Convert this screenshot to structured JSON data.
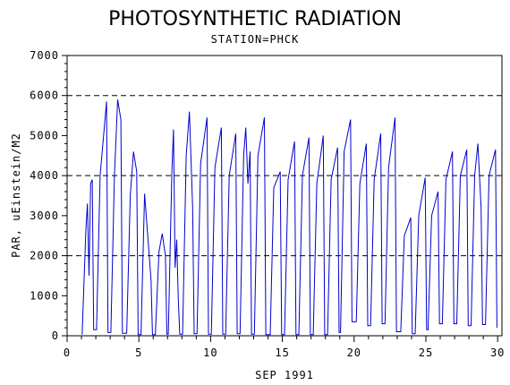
{
  "chart_data": {
    "type": "line",
    "title": "PHOTOSYNTHETIC RADIATION",
    "subtitle": "STATION=PHCK",
    "xlabel": "SEP 1991",
    "ylabel": "PAR, uEinstein/M2",
    "xlim": [
      0,
      30.3
    ],
    "ylim": [
      0,
      7000
    ],
    "xticks": [
      0,
      5,
      10,
      15,
      20,
      25,
      30
    ],
    "yticks": [
      0,
      1000,
      2000,
      3000,
      4000,
      5000,
      6000,
      7000
    ],
    "reference_lines_y": [
      2000,
      4000,
      6000
    ],
    "line_color": "#0000cc",
    "series": [
      {
        "peaks": [
          {
            "start": 1.2,
            "values": [
              2600,
              3300,
              1500,
              3800,
              3900
            ]
          },
          {
            "start": 2.2,
            "values": [
              4000,
              5850
            ]
          },
          {
            "start": 3.2,
            "values": [
              4000,
              5900,
              5400
            ]
          },
          {
            "start": 4.3,
            "values": [
              3500,
              4600,
              4100
            ]
          },
          {
            "start": 5.3,
            "values": [
              3550,
              1400
            ]
          },
          {
            "start": 6.3,
            "values": [
              2100,
              2550,
              2000
            ]
          },
          {
            "start": 7.2,
            "values": [
              4100,
              5150,
              1700,
              2400,
              900
            ]
          },
          {
            "start": 8.2,
            "values": [
              4500,
              5600,
              3200
            ]
          },
          {
            "start": 9.2,
            "values": [
              4300,
              5450
            ]
          },
          {
            "start": 10.2,
            "values": [
              4200,
              5200
            ]
          },
          {
            "start": 11.2,
            "values": [
              4000,
              5050
            ]
          },
          {
            "start": 12.2,
            "values": [
              4500,
              5200,
              3800,
              4600
            ]
          },
          {
            "start": 13.2,
            "values": [
              4500,
              5450
            ]
          },
          {
            "start": 14.3,
            "values": [
              3700,
              4100
            ]
          },
          {
            "start": 15.3,
            "values": [
              3900,
              4850
            ]
          },
          {
            "start": 16.3,
            "values": [
              4000,
              4950
            ]
          },
          {
            "start": 17.3,
            "values": [
              3800,
              5000
            ]
          },
          {
            "start": 18.3,
            "values": [
              3900,
              4700
            ]
          },
          {
            "start": 19.2,
            "values": [
              4600,
              5400
            ]
          },
          {
            "start": 20.3,
            "values": [
              3800,
              4800
            ]
          },
          {
            "start": 21.3,
            "values": [
              3900,
              5050
            ]
          },
          {
            "start": 22.3,
            "values": [
              4200,
              5450
            ]
          },
          {
            "start": 23.4,
            "values": [
              2500,
              2950
            ]
          },
          {
            "start": 24.4,
            "values": [
              3000,
              3950
            ]
          },
          {
            "start": 25.3,
            "values": [
              3000,
              3600
            ]
          },
          {
            "start": 26.3,
            "values": [
              3900,
              4600
            ]
          },
          {
            "start": 27.3,
            "values": [
              4000,
              4650
            ]
          },
          {
            "start": 28.3,
            "values": [
              4000,
              4800,
              3200
            ]
          },
          {
            "start": 29.3,
            "values": [
              4000,
              4650
            ]
          }
        ],
        "night_values": [
          30,
          150,
          80,
          60,
          30,
          30,
          40,
          40,
          50,
          40,
          40,
          50,
          40,
          30,
          30,
          30,
          30,
          30,
          80,
          350,
          250,
          300,
          100,
          50,
          150,
          300,
          300,
          250,
          280,
          200
        ]
      }
    ]
  }
}
